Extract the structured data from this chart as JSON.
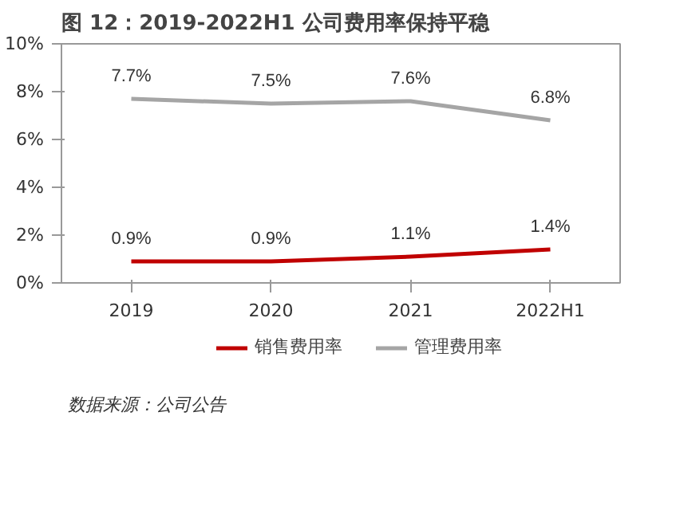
{
  "chart_data": {
    "type": "line",
    "title": "图 12：2019-2022H1 公司费用率保持平稳",
    "categories": [
      "2019",
      "2020",
      "2021",
      "2022H1"
    ],
    "series": [
      {
        "name": "销售费用率",
        "color": "#c00000",
        "values": [
          0.9,
          0.9,
          1.1,
          1.4
        ],
        "value_labels": [
          "0.9%",
          "0.9%",
          "1.1%",
          "1.4%"
        ]
      },
      {
        "name": "管理费用率",
        "color": "#a5a5a5",
        "values": [
          7.7,
          7.5,
          7.6,
          6.8
        ],
        "value_labels": [
          "7.7%",
          "7.5%",
          "7.6%",
          "6.8%"
        ]
      }
    ],
    "ylim": [
      0,
      10
    ],
    "yticks": [
      {
        "value": 0,
        "label": "0%"
      },
      {
        "value": 2,
        "label": "2%"
      },
      {
        "value": 4,
        "label": "4%"
      },
      {
        "value": 6,
        "label": "6%"
      },
      {
        "value": 8,
        "label": "8%"
      },
      {
        "value": 10,
        "label": "10%"
      }
    ],
    "grid": false,
    "legend": "bottom",
    "marker": "none",
    "line_style": "solid",
    "annotations": [
      "数据来源：公司公告"
    ]
  }
}
